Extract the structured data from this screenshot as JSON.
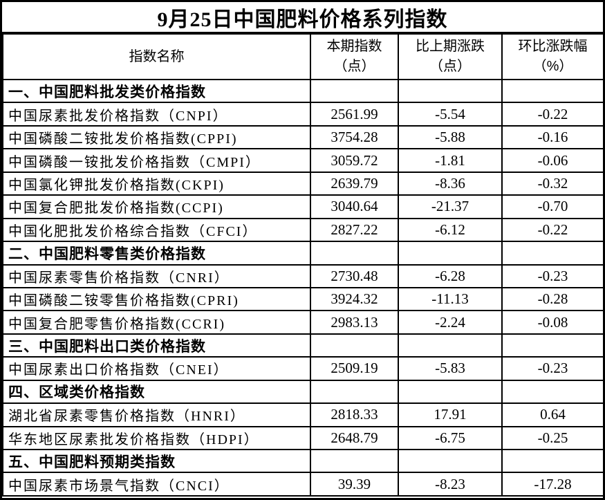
{
  "title": "9月25日中国肥料价格系列指数",
  "colors": {
    "border": "#000000",
    "background": "#ffffff",
    "text": "#000000"
  },
  "table": {
    "headers": {
      "name": "指数名称",
      "current": {
        "line1": "本期指数",
        "line2": "（点）"
      },
      "change": {
        "line1": "比上期涨跌",
        "line2": "（点）"
      },
      "pct": {
        "line1": "环比涨跌幅",
        "line2": "（%）"
      }
    },
    "rows": [
      {
        "type": "section",
        "name": "一、中国肥料批发类价格指数",
        "current": "",
        "change": "",
        "pct": ""
      },
      {
        "type": "data",
        "name": "中国尿素批发价格指数（CNPI）",
        "current": "2561.99",
        "change": "-5.54",
        "pct": "-0.22"
      },
      {
        "type": "data",
        "name": "中国磷酸二铵批发价格指数(CPPI)",
        "current": "3754.28",
        "change": "-5.88",
        "pct": "-0.16"
      },
      {
        "type": "data",
        "name": "中国磷酸一铵批发价格指数（CMPI）",
        "current": "3059.72",
        "change": "-1.81",
        "pct": "-0.06"
      },
      {
        "type": "data",
        "name": "中国氯化钾批发价格指数(CKPI)",
        "current": "2639.79",
        "change": "-8.36",
        "pct": "-0.32"
      },
      {
        "type": "data",
        "name": "中国复合肥批发价格指数(CCPI)",
        "current": "3040.64",
        "change": "-21.37",
        "pct": "-0.70"
      },
      {
        "type": "data",
        "name": "中国化肥批发价格综合指数（CFCI）",
        "current": "2827.22",
        "change": "-6.12",
        "pct": "-0.22"
      },
      {
        "type": "section",
        "name": "二、中国肥料零售类价格指数",
        "current": "",
        "change": "",
        "pct": ""
      },
      {
        "type": "data",
        "name": "中国尿素零售价格指数（CNRI）",
        "current": "2730.48",
        "change": "-6.28",
        "pct": "-0.23"
      },
      {
        "type": "data",
        "name": "中国磷酸二铵零售价格指数(CPRI)",
        "current": "3924.32",
        "change": "-11.13",
        "pct": "-0.28"
      },
      {
        "type": "data",
        "name": "中国复合肥零售价格指数(CCRI)",
        "current": "2983.13",
        "change": "-2.24",
        "pct": "-0.08"
      },
      {
        "type": "section",
        "name": "三、中国肥料出口类价格指数",
        "current": "",
        "change": "",
        "pct": ""
      },
      {
        "type": "data",
        "name": "中国尿素出口价格指数（CNEI）",
        "current": "2509.19",
        "change": "-5.83",
        "pct": "-0.23"
      },
      {
        "type": "section",
        "name": "四、区域类价格指数",
        "current": "",
        "change": "",
        "pct": ""
      },
      {
        "type": "data",
        "name": "湖北省尿素零售价格指数（HNRI）",
        "current": "2818.33",
        "change": "17.91",
        "pct": "0.64"
      },
      {
        "type": "data",
        "name": "华东地区尿素批发价格指数（HDPI）",
        "current": "2648.79",
        "change": "-6.75",
        "pct": "-0.25"
      },
      {
        "type": "section",
        "name": "五、中国肥料预期类指数",
        "current": "",
        "change": "",
        "pct": ""
      },
      {
        "type": "data",
        "name": "中国尿素市场景气指数（CNCI）",
        "current": "39.39",
        "change": "-8.23",
        "pct": "-17.28"
      }
    ]
  }
}
